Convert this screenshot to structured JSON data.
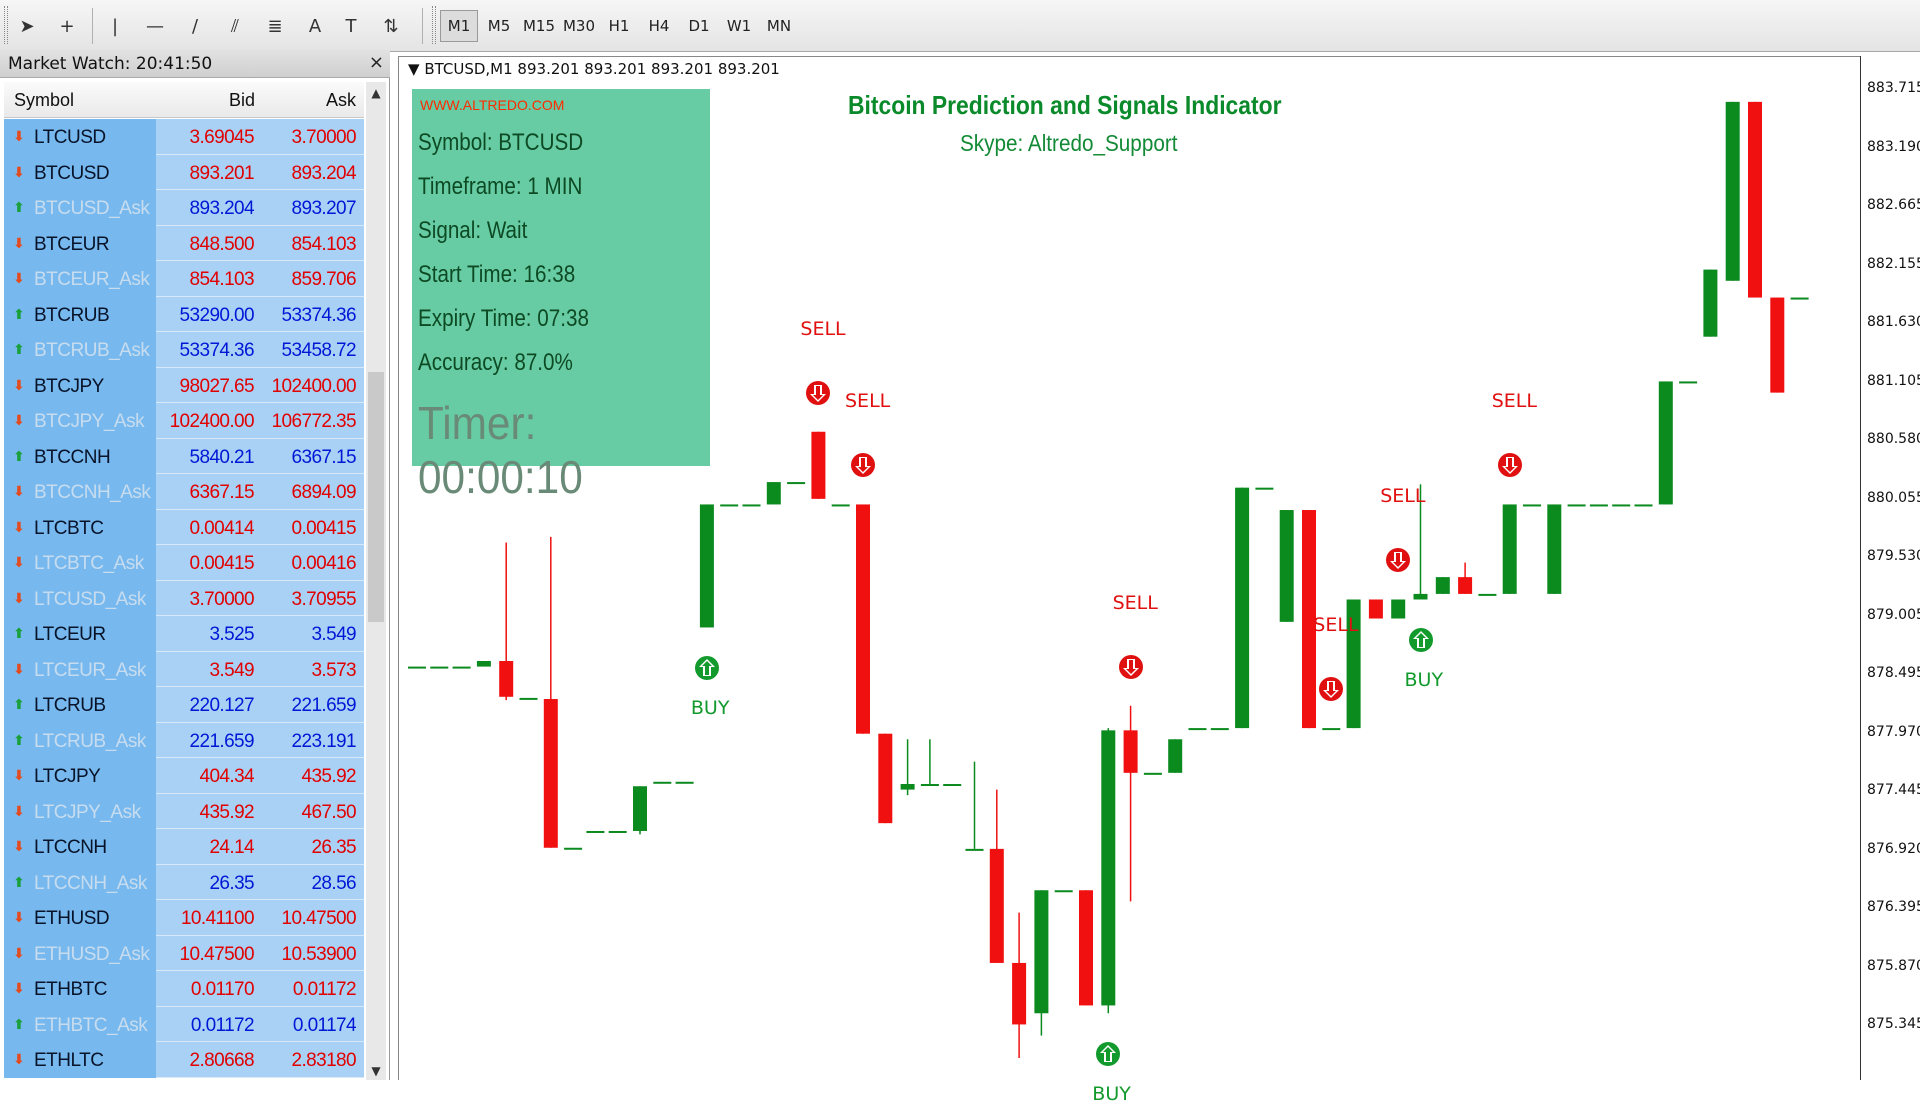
{
  "toolbar": {
    "tools": [
      {
        "icon": "cursor-icon",
        "glyph": "➤"
      },
      {
        "icon": "crosshair-icon",
        "glyph": "+"
      },
      {
        "icon": "vertical-line-icon",
        "glyph": "|"
      },
      {
        "icon": "horizontal-line-icon",
        "glyph": "—"
      },
      {
        "icon": "trendline-icon",
        "glyph": "/"
      },
      {
        "icon": "equidistant-channel-icon",
        "glyph": "⫽"
      },
      {
        "icon": "fibonacci-icon",
        "glyph": "≣"
      },
      {
        "icon": "text-icon",
        "glyph": "A"
      },
      {
        "icon": "text-label-icon",
        "glyph": "T"
      },
      {
        "icon": "arrows-menu-icon",
        "glyph": "⇅"
      }
    ],
    "timeframes": [
      "M1",
      "M5",
      "M15",
      "M30",
      "H1",
      "H4",
      "D1",
      "W1",
      "MN"
    ],
    "active_timeframe": "M1"
  },
  "market_watch": {
    "title": "Market Watch: 20:41:50",
    "close": "×",
    "columns": {
      "symbol": "Symbol",
      "bid": "Bid",
      "ask": "Ask"
    },
    "rows": [
      {
        "symbol": "LTCUSD",
        "bid": "3.69045",
        "ask": "3.70000",
        "dir": "down",
        "dim": false,
        "color": "red"
      },
      {
        "symbol": "BTCUSD",
        "bid": "893.201",
        "ask": "893.204",
        "dir": "down",
        "dim": false,
        "color": "red"
      },
      {
        "symbol": "BTCUSD_Ask",
        "bid": "893.204",
        "ask": "893.207",
        "dir": "up",
        "dim": true,
        "color": "blue"
      },
      {
        "symbol": "BTCEUR",
        "bid": "848.500",
        "ask": "854.103",
        "dir": "down",
        "dim": false,
        "color": "red"
      },
      {
        "symbol": "BTCEUR_Ask",
        "bid": "854.103",
        "ask": "859.706",
        "dir": "down",
        "dim": true,
        "color": "red"
      },
      {
        "symbol": "BTCRUB",
        "bid": "53290.00",
        "ask": "53374.36",
        "dir": "up",
        "dim": false,
        "color": "blue"
      },
      {
        "symbol": "BTCRUB_Ask",
        "bid": "53374.36",
        "ask": "53458.72",
        "dir": "up",
        "dim": true,
        "color": "blue"
      },
      {
        "symbol": "BTCJPY",
        "bid": "98027.65",
        "ask": "102400.00",
        "dir": "down",
        "dim": false,
        "color": "red"
      },
      {
        "symbol": "BTCJPY_Ask",
        "bid": "102400.00",
        "ask": "106772.35",
        "dir": "down",
        "dim": true,
        "color": "red"
      },
      {
        "symbol": "BTCCNH",
        "bid": "5840.21",
        "ask": "6367.15",
        "dir": "up",
        "dim": false,
        "color": "blue"
      },
      {
        "symbol": "BTCCNH_Ask",
        "bid": "6367.15",
        "ask": "6894.09",
        "dir": "down",
        "dim": true,
        "color": "red"
      },
      {
        "symbol": "LTCBTC",
        "bid": "0.00414",
        "ask": "0.00415",
        "dir": "down",
        "dim": false,
        "color": "red"
      },
      {
        "symbol": "LTCBTC_Ask",
        "bid": "0.00415",
        "ask": "0.00416",
        "dir": "down",
        "dim": true,
        "color": "red"
      },
      {
        "symbol": "LTCUSD_Ask",
        "bid": "3.70000",
        "ask": "3.70955",
        "dir": "down",
        "dim": true,
        "color": "red"
      },
      {
        "symbol": "LTCEUR",
        "bid": "3.525",
        "ask": "3.549",
        "dir": "up",
        "dim": false,
        "color": "blue"
      },
      {
        "symbol": "LTCEUR_Ask",
        "bid": "3.549",
        "ask": "3.573",
        "dir": "down",
        "dim": true,
        "color": "red"
      },
      {
        "symbol": "LTCRUB",
        "bid": "220.127",
        "ask": "221.659",
        "dir": "up",
        "dim": false,
        "color": "blue"
      },
      {
        "symbol": "LTCRUB_Ask",
        "bid": "221.659",
        "ask": "223.191",
        "dir": "up",
        "dim": true,
        "color": "blue"
      },
      {
        "symbol": "LTCJPY",
        "bid": "404.34",
        "ask": "435.92",
        "dir": "down",
        "dim": false,
        "color": "red"
      },
      {
        "symbol": "LTCJPY_Ask",
        "bid": "435.92",
        "ask": "467.50",
        "dir": "down",
        "dim": true,
        "color": "red"
      },
      {
        "symbol": "LTCCNH",
        "bid": "24.14",
        "ask": "26.35",
        "dir": "down",
        "dim": false,
        "color": "red"
      },
      {
        "symbol": "LTCCNH_Ask",
        "bid": "26.35",
        "ask": "28.56",
        "dir": "up",
        "dim": true,
        "color": "blue"
      },
      {
        "symbol": "ETHUSD",
        "bid": "10.41100",
        "ask": "10.47500",
        "dir": "down",
        "dim": false,
        "color": "red"
      },
      {
        "symbol": "ETHUSD_Ask",
        "bid": "10.47500",
        "ask": "10.53900",
        "dir": "down",
        "dim": true,
        "color": "red"
      },
      {
        "symbol": "ETHBTC",
        "bid": "0.01170",
        "ask": "0.01172",
        "dir": "down",
        "dim": false,
        "color": "red"
      },
      {
        "symbol": "ETHBTC_Ask",
        "bid": "0.01172",
        "ask": "0.01174",
        "dir": "up",
        "dim": true,
        "color": "blue"
      },
      {
        "symbol": "ETHLTC",
        "bid": "2.80668",
        "ask": "2.83180",
        "dir": "down",
        "dim": false,
        "color": "red"
      }
    ]
  },
  "chart": {
    "header": "BTCUSD,M1  893.201 893.201 893.201 893.201",
    "price_labels": [
      "883.715",
      "883.190",
      "882.665",
      "882.155",
      "881.630",
      "881.105",
      "880.580",
      "880.055",
      "879.530",
      "879.005",
      "878.495",
      "877.970",
      "877.445",
      "876.920",
      "876.395",
      "875.870",
      "875.345"
    ],
    "colors": {
      "bull": "#0b8a1e",
      "bear": "#f01010",
      "doji": "#0b8a1e"
    }
  },
  "chart_data": {
    "type": "candlestick",
    "title": "Bitcoin Prediction and Signals Indicator",
    "symbol": "BTCUSD",
    "timeframe": "M1",
    "ylim": [
      875.0,
      884.0
    ],
    "candles": [
      {
        "o": 878.55,
        "h": 878.55,
        "l": 878.55,
        "c": 878.55
      },
      {
        "o": 878.55,
        "h": 878.55,
        "l": 878.55,
        "c": 878.55
      },
      {
        "o": 878.55,
        "h": 878.55,
        "l": 878.55,
        "c": 878.55
      },
      {
        "o": 878.55,
        "h": 878.55,
        "l": 878.55,
        "c": 878.6
      },
      {
        "o": 878.6,
        "h": 879.66,
        "l": 878.25,
        "c": 878.28
      },
      {
        "o": 878.27,
        "h": 878.27,
        "l": 878.27,
        "c": 878.27
      },
      {
        "o": 878.26,
        "h": 879.71,
        "l": 876.93,
        "c": 876.93
      },
      {
        "o": 876.93,
        "h": 876.93,
        "l": 876.93,
        "c": 876.93
      },
      {
        "o": 877.08,
        "h": 877.08,
        "l": 877.08,
        "c": 877.08
      },
      {
        "o": 877.08,
        "h": 877.08,
        "l": 877.08,
        "c": 877.08
      },
      {
        "o": 877.08,
        "h": 877.48,
        "l": 877.05,
        "c": 877.48
      },
      {
        "o": 877.52,
        "h": 877.52,
        "l": 877.52,
        "c": 877.52
      },
      {
        "o": 877.52,
        "h": 877.52,
        "l": 877.52,
        "c": 877.52
      },
      {
        "o": 878.9,
        "h": 880.0,
        "l": 878.9,
        "c": 880.0
      },
      {
        "o": 880.0,
        "h": 880.0,
        "l": 880.0,
        "c": 880.0
      },
      {
        "o": 880.0,
        "h": 880.0,
        "l": 880.0,
        "c": 880.0
      },
      {
        "o": 880.0,
        "h": 880.2,
        "l": 880.0,
        "c": 880.2
      },
      {
        "o": 880.2,
        "h": 880.2,
        "l": 880.2,
        "c": 880.2
      },
      {
        "o": 880.65,
        "h": 880.65,
        "l": 880.05,
        "c": 880.05
      },
      {
        "o": 880.0,
        "h": 880.0,
        "l": 880.0,
        "c": 880.0
      },
      {
        "o": 880.0,
        "h": 880.0,
        "l": 877.95,
        "c": 877.95
      },
      {
        "o": 877.95,
        "h": 877.95,
        "l": 877.15,
        "c": 877.15
      },
      {
        "o": 877.45,
        "h": 877.9,
        "l": 877.4,
        "c": 877.5
      },
      {
        "o": 877.5,
        "h": 877.9,
        "l": 877.5,
        "c": 877.5
      },
      {
        "o": 877.5,
        "h": 877.5,
        "l": 877.5,
        "c": 877.5
      },
      {
        "o": 876.92,
        "h": 877.7,
        "l": 876.92,
        "c": 876.92
      },
      {
        "o": 876.92,
        "h": 877.45,
        "l": 875.9,
        "c": 875.9
      },
      {
        "o": 875.9,
        "h": 876.35,
        "l": 875.05,
        "c": 875.35
      },
      {
        "o": 875.45,
        "h": 876.55,
        "l": 875.25,
        "c": 876.55
      },
      {
        "o": 876.55,
        "h": 876.55,
        "l": 876.55,
        "c": 876.55
      },
      {
        "o": 876.55,
        "h": 876.55,
        "l": 875.52,
        "c": 875.52
      },
      {
        "o": 875.52,
        "h": 878.0,
        "l": 875.45,
        "c": 877.98
      },
      {
        "o": 877.98,
        "h": 878.2,
        "l": 876.45,
        "c": 877.6
      },
      {
        "o": 877.6,
        "h": 877.6,
        "l": 877.6,
        "c": 877.6
      },
      {
        "o": 877.6,
        "h": 877.9,
        "l": 877.6,
        "c": 877.9
      },
      {
        "o": 878.0,
        "h": 878.0,
        "l": 878.0,
        "c": 878.0
      },
      {
        "o": 878.0,
        "h": 878.0,
        "l": 878.0,
        "c": 878.0
      },
      {
        "o": 878.0,
        "h": 880.15,
        "l": 878.0,
        "c": 880.15
      },
      {
        "o": 880.15,
        "h": 880.15,
        "l": 880.15,
        "c": 880.15
      },
      {
        "o": 878.95,
        "h": 879.95,
        "l": 878.95,
        "c": 879.95
      },
      {
        "o": 879.95,
        "h": 879.95,
        "l": 878.0,
        "c": 878.0
      },
      {
        "o": 878.0,
        "h": 878.0,
        "l": 878.0,
        "c": 878.0
      },
      {
        "o": 878.0,
        "h": 879.15,
        "l": 878.0,
        "c": 879.15
      },
      {
        "o": 879.15,
        "h": 879.15,
        "l": 878.98,
        "c": 878.98
      },
      {
        "o": 878.98,
        "h": 879.15,
        "l": 878.98,
        "c": 879.15
      },
      {
        "o": 879.15,
        "h": 880.18,
        "l": 879.15,
        "c": 879.2
      },
      {
        "o": 879.2,
        "h": 879.35,
        "l": 879.2,
        "c": 879.35
      },
      {
        "o": 879.35,
        "h": 879.48,
        "l": 879.2,
        "c": 879.2
      },
      {
        "o": 879.2,
        "h": 879.2,
        "l": 879.2,
        "c": 879.2
      },
      {
        "o": 879.2,
        "h": 880.0,
        "l": 879.2,
        "c": 880.0
      },
      {
        "o": 880.0,
        "h": 880.0,
        "l": 880.0,
        "c": 880.0
      },
      {
        "o": 879.2,
        "h": 880.0,
        "l": 879.2,
        "c": 880.0
      },
      {
        "o": 880.0,
        "h": 880.0,
        "l": 880.0,
        "c": 880.0
      },
      {
        "o": 880.0,
        "h": 880.0,
        "l": 880.0,
        "c": 880.0
      },
      {
        "o": 880.0,
        "h": 880.0,
        "l": 880.0,
        "c": 880.0
      },
      {
        "o": 880.0,
        "h": 880.0,
        "l": 880.0,
        "c": 880.0
      },
      {
        "o": 880.0,
        "h": 881.1,
        "l": 880.0,
        "c": 881.1
      },
      {
        "o": 881.1,
        "h": 881.1,
        "l": 881.1,
        "c": 881.1
      },
      {
        "o": 881.5,
        "h": 882.1,
        "l": 881.5,
        "c": 882.1
      },
      {
        "o": 882.0,
        "h": 883.6,
        "l": 882.0,
        "c": 883.6
      },
      {
        "o": 883.6,
        "h": 883.6,
        "l": 881.85,
        "c": 881.85
      },
      {
        "o": 881.85,
        "h": 881.85,
        "l": 881.0,
        "c": 881.0
      },
      {
        "o": 881.85,
        "h": 881.85,
        "l": 881.85,
        "c": 881.85
      }
    ],
    "signals": [
      {
        "type": "SELL",
        "candle": 18,
        "label": "SELL"
      },
      {
        "type": "SELL",
        "candle": 20,
        "label": "SELL"
      },
      {
        "type": "BUY",
        "candle": 13,
        "label": "BUY"
      },
      {
        "type": "SELL",
        "candle": 32,
        "label": "SELL"
      },
      {
        "type": "BUY",
        "candle": 31,
        "label": "BUY"
      },
      {
        "type": "SELL",
        "candle": 41,
        "label": "SELL"
      },
      {
        "type": "SELL",
        "candle": 44,
        "label": "SELL"
      },
      {
        "type": "BUY",
        "candle": 45,
        "label": "BUY"
      },
      {
        "type": "SELL",
        "candle": 49,
        "label": "SELL"
      }
    ]
  },
  "info": {
    "site": "WWW.ALTREDO.COM",
    "symbol": "Symbol: BTCUSD",
    "timeframe": "Timeframe: 1 MIN",
    "signal": "Signal: Wait",
    "start": "Start Time: 16:38",
    "expiry": "Expiry Time: 07:38",
    "accuracy": "Accuracy: 87.0%",
    "timer": "Timer: 00:00:10"
  },
  "indicator": {
    "title": "Bitcoin Prediction and Signals Indicator",
    "subtitle": "Skype: Altredo_Support"
  }
}
